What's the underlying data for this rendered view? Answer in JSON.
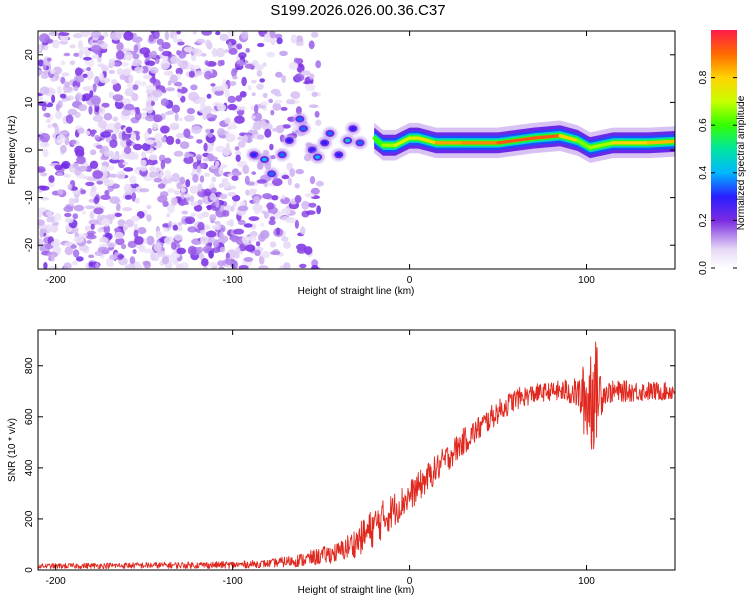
{
  "title": "S199.2026.026.00.36.C37",
  "colors": {
    "plot_bg": "#ffffff",
    "axis": "#000000",
    "snr_line": "#e0281e",
    "noise_light": "#d9c6f2",
    "noise_dark": "#6a1fd6"
  },
  "chart_data": [
    {
      "type": "heatmap",
      "name": "spectrogram",
      "title": "S199.2026.026.00.36.C37",
      "xlabel": "Height of straight line (km)",
      "ylabel": "Frequency (Hz)",
      "xlim": [
        -210,
        150
      ],
      "ylim": [
        -25,
        25
      ],
      "xticks": [
        -200,
        -100,
        0,
        100
      ],
      "yticks": [
        -20,
        -10,
        0,
        10,
        20
      ],
      "colorbar": {
        "label": "Normalized spectral amplitude",
        "ticks": [
          "0.0",
          "0.2",
          "0.4",
          "0.6",
          "0.8"
        ],
        "range": [
          0,
          1
        ]
      },
      "ridge": [
        {
          "x": -20,
          "f": 2.5,
          "amp": 0.55
        },
        {
          "x": -15,
          "f": 1.0,
          "amp": 0.65
        },
        {
          "x": -8,
          "f": 1.0,
          "amp": 0.7
        },
        {
          "x": 0,
          "f": 2.5,
          "amp": 0.75
        },
        {
          "x": 5,
          "f": 2.5,
          "amp": 0.7
        },
        {
          "x": 15,
          "f": 1.5,
          "amp": 0.85
        },
        {
          "x": 30,
          "f": 1.5,
          "amp": 0.85
        },
        {
          "x": 50,
          "f": 1.5,
          "amp": 0.9
        },
        {
          "x": 70,
          "f": 2.5,
          "amp": 0.95
        },
        {
          "x": 85,
          "f": 3.0,
          "amp": 0.9
        },
        {
          "x": 95,
          "f": 2.0,
          "amp": 0.7
        },
        {
          "x": 102,
          "f": 0.5,
          "amp": 0.6
        },
        {
          "x": 115,
          "f": 1.5,
          "amp": 0.75
        },
        {
          "x": 135,
          "f": 1.5,
          "amp": 0.85
        },
        {
          "x": 150,
          "f": 1.8,
          "amp": 0.8
        }
      ],
      "blobs": [
        {
          "x": -88,
          "f": -1,
          "amp": 0.3
        },
        {
          "x": -82,
          "f": -2,
          "amp": 0.4
        },
        {
          "x": -78,
          "f": -5,
          "amp": 0.35
        },
        {
          "x": -72,
          "f": -1,
          "amp": 0.35
        },
        {
          "x": -68,
          "f": 2,
          "amp": 0.3
        },
        {
          "x": -62,
          "f": 6.5,
          "amp": 0.35
        },
        {
          "x": -60,
          "f": 4.5,
          "amp": 0.35
        },
        {
          "x": -55,
          "f": 0,
          "amp": 0.3
        },
        {
          "x": -52,
          "f": -1.5,
          "amp": 0.4
        },
        {
          "x": -48,
          "f": 1.5,
          "amp": 0.3
        },
        {
          "x": -45,
          "f": 3.5,
          "amp": 0.35
        },
        {
          "x": -40,
          "f": -1,
          "amp": 0.3
        },
        {
          "x": -35,
          "f": 2,
          "amp": 0.45
        },
        {
          "x": -32,
          "f": 4.5,
          "amp": 0.3
        },
        {
          "x": -28,
          "f": 1.5,
          "amp": 0.35
        }
      ]
    },
    {
      "type": "line",
      "name": "snr",
      "xlabel": "Height of straight line (km)",
      "ylabel": "SNR (10 * v/v)",
      "xlim": [
        -210,
        150
      ],
      "ylim": [
        0,
        940
      ],
      "xticks": [
        -200,
        -100,
        0,
        100
      ],
      "yticks": [
        0,
        200,
        400,
        600,
        800
      ],
      "envelope": {
        "x": [
          -210,
          -150,
          -100,
          -80,
          -60,
          -40,
          -30,
          -20,
          -10,
          0,
          10,
          20,
          30,
          40,
          50,
          60,
          70,
          80,
          90,
          95,
          100,
          103,
          106,
          110,
          120,
          130,
          140,
          150
        ],
        "y": [
          15,
          18,
          20,
          25,
          40,
          70,
          110,
          170,
          230,
          290,
          360,
          430,
          500,
          560,
          620,
          670,
          690,
          700,
          700,
          690,
          660,
          700,
          700,
          695,
          700,
          700,
          700,
          700
        ]
      },
      "noise_amplitude": {
        "x": [
          -210,
          -80,
          -40,
          -20,
          0,
          40,
          80,
          95,
          100,
          103,
          106,
          110,
          150
        ],
        "y": [
          10,
          15,
          40,
          80,
          60,
          50,
          35,
          60,
          180,
          260,
          180,
          45,
          35
        ]
      }
    }
  ]
}
